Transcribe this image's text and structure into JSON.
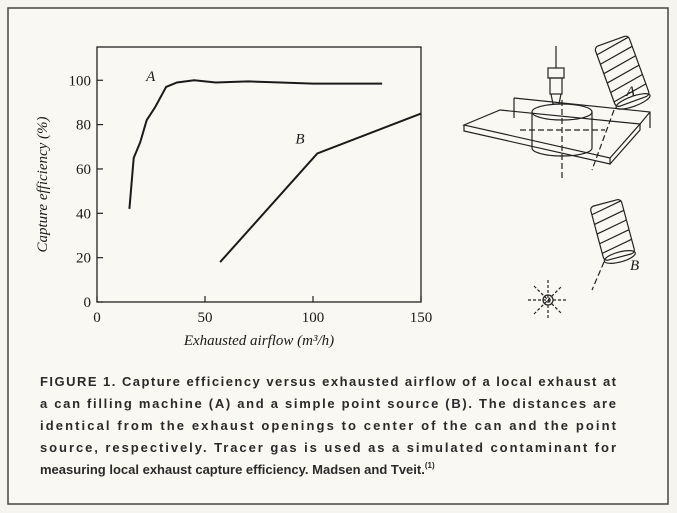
{
  "chart_data": {
    "type": "line",
    "x_label": "Exhausted airflow (m³/h)",
    "y_label": "Capture efficiency (%)",
    "xlim": [
      0,
      150
    ],
    "ylim": [
      0,
      115
    ],
    "xticks": [
      0,
      50,
      100,
      150
    ],
    "yticks": [
      0,
      20,
      40,
      60,
      80,
      100
    ],
    "series": [
      {
        "name": "A",
        "color": "#1a1a1a",
        "x": [
          15,
          17,
          20,
          23,
          27,
          32,
          37,
          45,
          55,
          70,
          85,
          100,
          115,
          132
        ],
        "values": [
          42,
          65,
          72,
          82,
          88,
          97,
          99,
          100,
          99,
          99.5,
          99,
          98.5,
          98.5,
          98.5
        ]
      },
      {
        "name": "B",
        "color": "#1a1a1a",
        "x": [
          57,
          102,
          150
        ],
        "values": [
          18,
          67,
          85
        ]
      }
    ]
  },
  "diagram": {
    "labels": [
      "A",
      "B"
    ]
  },
  "caption": {
    "lines": [
      "FIGURE 1. Capture efficiency versus exhausted airflow of a local exhaust at",
      "a can filling machine (A) and a simple point source (B). The distances are",
      "identical from the exhaust openings to center of the can and the point",
      "source, respectively. Tracer gas is used as a simulated contaminant for",
      "measuring local exhaust capture efficiency. Madsen and Tveit."
    ],
    "reference": "(1)"
  }
}
